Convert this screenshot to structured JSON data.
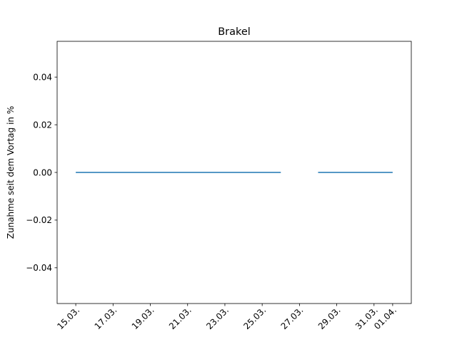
{
  "chart_data": {
    "type": "line",
    "title": "Brakel",
    "xlabel": "",
    "ylabel": "Zunahme seit dem Vortag in %",
    "ylim": [
      -0.055,
      0.055
    ],
    "xlim": [
      "2020-03-14",
      "2020-04-02"
    ],
    "x_ticks": [
      "15.03.",
      "17.03.",
      "19.03.",
      "21.03.",
      "23.03.",
      "25.03.",
      "27.03.",
      "29.03.",
      "31.03.",
      "01.04."
    ],
    "y_ticks": [
      "0.04",
      "0.02",
      "0.00",
      "−0.02",
      "−0.04"
    ],
    "y_tick_values": [
      0.04,
      0.02,
      0.0,
      -0.02,
      -0.04
    ],
    "grid": false,
    "series": [
      {
        "color": "#1f77b4",
        "segments": [
          {
            "x": [
              "2020-03-15",
              "2020-03-16",
              "2020-03-17",
              "2020-03-18",
              "2020-03-19",
              "2020-03-20",
              "2020-03-21",
              "2020-03-22",
              "2020-03-23",
              "2020-03-24",
              "2020-03-25",
              "2020-03-26"
            ],
            "y": [
              0,
              0,
              0,
              0,
              0,
              0,
              0,
              0,
              0,
              0,
              0,
              0
            ]
          },
          {
            "x": [
              "2020-03-28",
              "2020-03-29",
              "2020-03-30",
              "2020-03-31",
              "2020-04-01"
            ],
            "y": [
              0,
              0,
              0,
              0,
              0
            ]
          }
        ]
      }
    ]
  }
}
